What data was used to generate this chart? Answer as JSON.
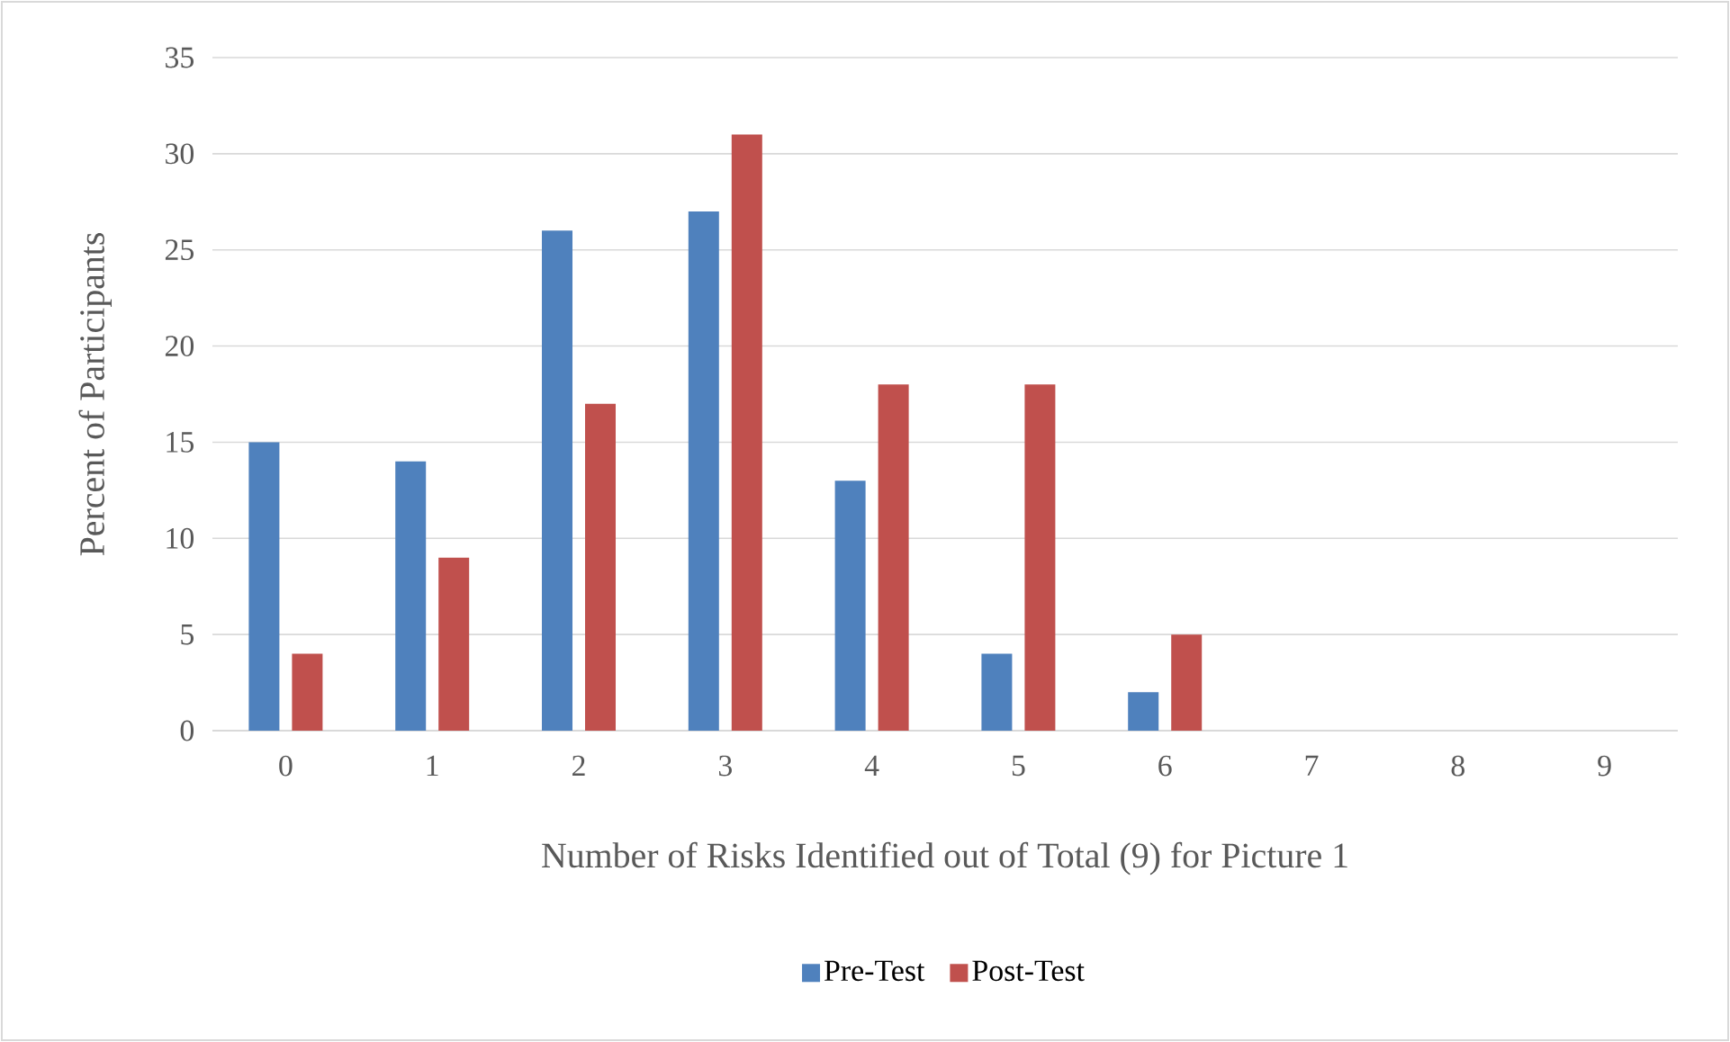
{
  "chart_data": {
    "type": "bar",
    "xlabel": "Number of Risks Identified out of Total (9) for Picture 1",
    "ylabel": "Percent of Participants",
    "categories": [
      "0",
      "1",
      "2",
      "3",
      "4",
      "5",
      "6",
      "7",
      "8",
      "9"
    ],
    "series": [
      {
        "name": "Pre-Test",
        "color": "#4f81bd",
        "values": [
          15,
          14,
          26,
          27,
          13,
          4,
          2,
          0,
          0,
          0
        ]
      },
      {
        "name": "Post-Test",
        "color": "#c0504d",
        "values": [
          4,
          9,
          17,
          31,
          18,
          18,
          5,
          0,
          0,
          0
        ]
      }
    ],
    "ylim": [
      0,
      35
    ],
    "yticks": [
      0,
      5,
      10,
      15,
      20,
      25,
      30,
      35
    ],
    "grid": "y",
    "legend": "bottom"
  }
}
